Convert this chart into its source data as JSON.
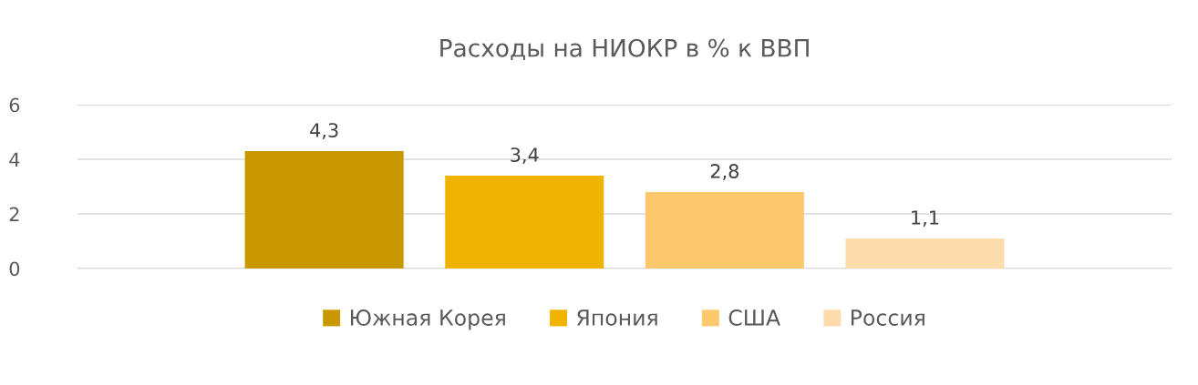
{
  "chart_data": {
    "type": "bar",
    "title": "Расходы на НИОКР в % к ВВП",
    "categories": [
      null
    ],
    "series": [
      {
        "name": "Южная Корея",
        "color": "#c99700",
        "values": [
          4.3
        ],
        "value_labels": [
          "4,3"
        ]
      },
      {
        "name": "Япония",
        "color": "#f0b300",
        "values": [
          3.4
        ],
        "value_labels": [
          "3,4"
        ]
      },
      {
        "name": "США",
        "color": "#fdc76b",
        "values": [
          2.8
        ],
        "value_labels": [
          "2,8"
        ]
      },
      {
        "name": "Россия",
        "color": "#fedbaa",
        "values": [
          1.1
        ],
        "value_labels": [
          "1,1"
        ]
      }
    ],
    "ylim": [
      0,
      6
    ],
    "yticks": [
      0,
      2,
      4,
      6
    ],
    "grid": "y",
    "legend": "bottom"
  }
}
